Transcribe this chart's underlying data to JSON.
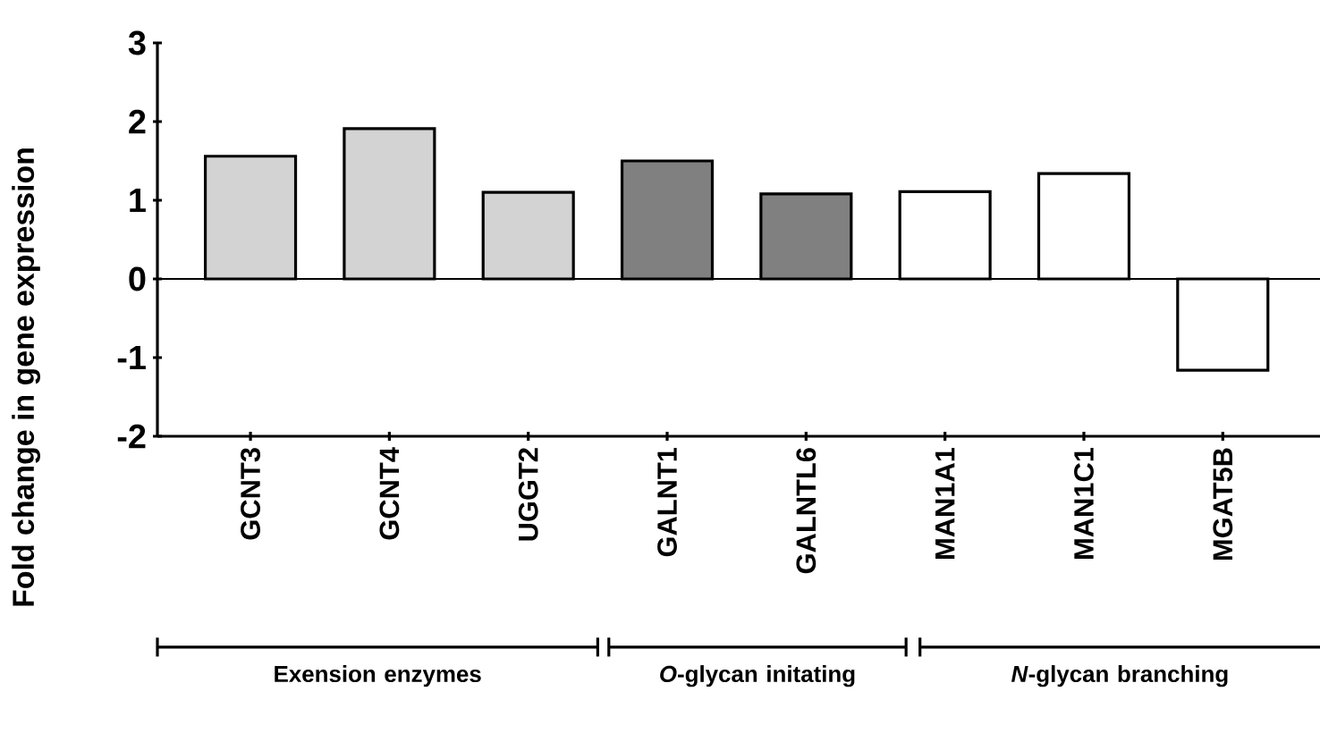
{
  "chart_data": {
    "type": "bar",
    "ylabel": "Fold change in gene expression",
    "categories": [
      "GCNT3",
      "GCNT4",
      "UGGT2",
      "GALNT1",
      "GALNTL6",
      "MAN1A1",
      "MAN1C1",
      "MGAT5B"
    ],
    "values": [
      1.56,
      1.91,
      1.1,
      1.5,
      1.08,
      1.11,
      1.34,
      -1.16
    ],
    "colors": [
      "#d3d3d3",
      "#d3d3d3",
      "#d3d3d3",
      "#808080",
      "#808080",
      "#ffffff",
      "#ffffff",
      "#ffffff"
    ],
    "ylim": [
      -2,
      3
    ],
    "yticks": [
      -2,
      -1,
      0,
      1,
      2,
      3
    ],
    "annotations": [
      "Exension enzymes",
      "*O*-glycan initating",
      "*N*-glycan branching"
    ]
  }
}
